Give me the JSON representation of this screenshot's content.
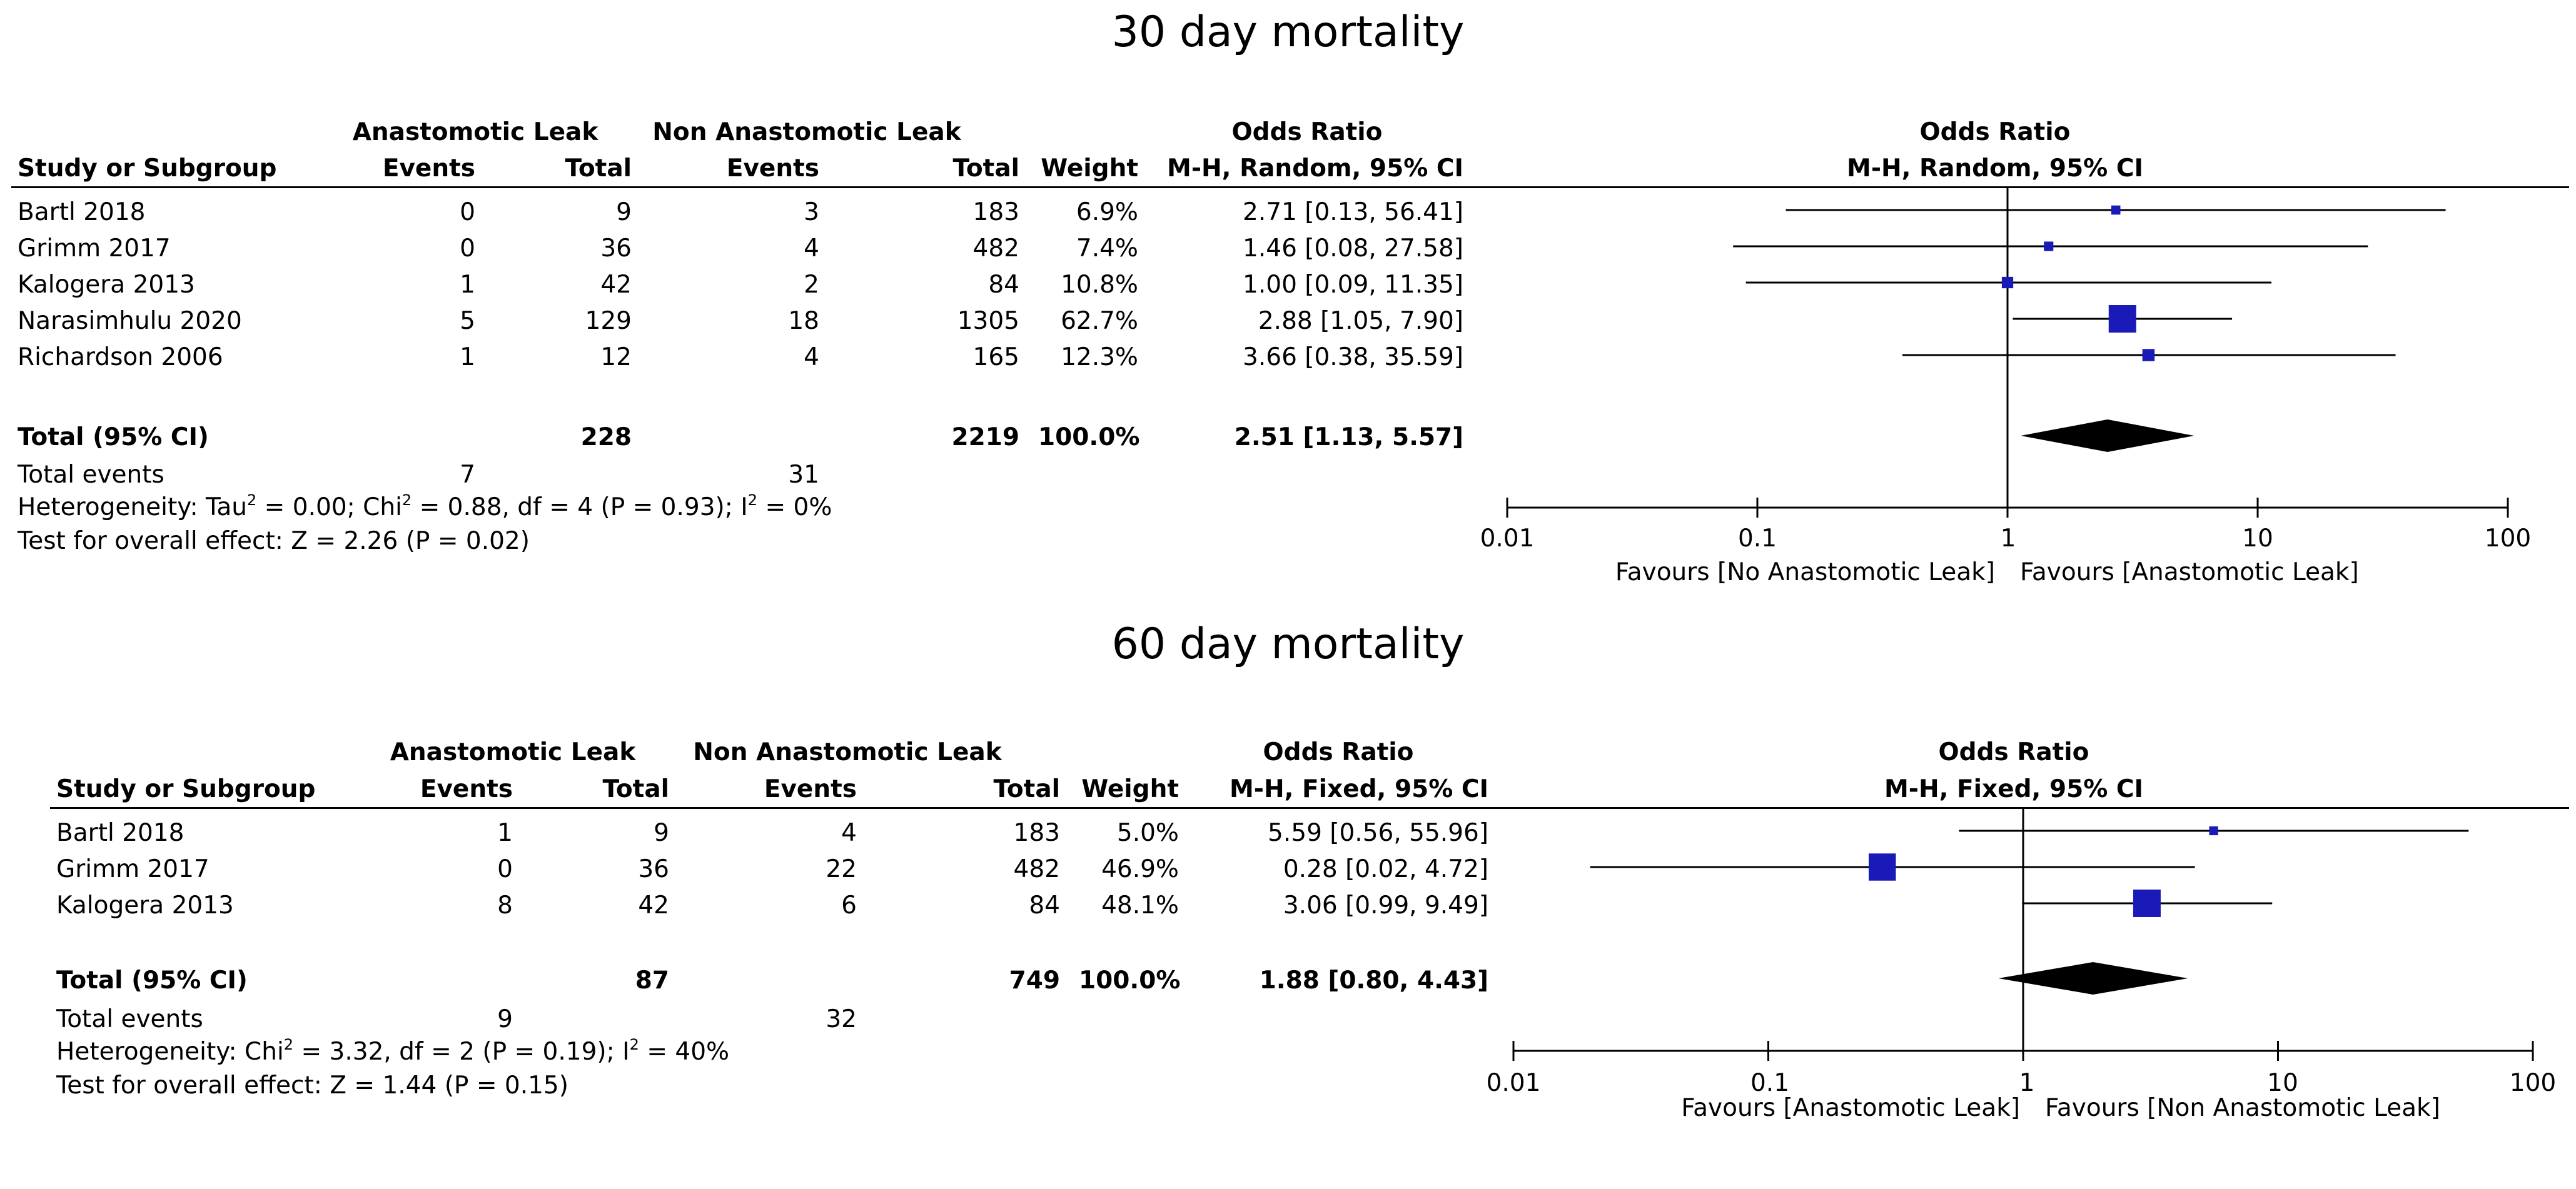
{
  "panels": [
    {
      "title": "30 day mortality",
      "headers": {
        "group1": "Anastomotic Leak",
        "group2": "Non Anastomotic Leak",
        "or_header_top": "Odds Ratio",
        "or_header_method": "M-H, Random, 95% CI",
        "study": "Study or Subgroup",
        "events1": "Events",
        "total1": "Total",
        "events2": "Events",
        "total2": "Total",
        "weight": "Weight",
        "plot_header_top": "Odds Ratio",
        "plot_header_method": "M-H, Random, 95% CI"
      },
      "rows": [
        {
          "study": "Bartl 2018",
          "e1": "0",
          "t1": "9",
          "e2": "3",
          "t2": "183",
          "weight": "6.9%",
          "ci_text": "2.71 [0.13, 56.41]"
        },
        {
          "study": "Grimm 2017",
          "e1": "0",
          "t1": "36",
          "e2": "4",
          "t2": "482",
          "weight": "7.4%",
          "ci_text": "1.46 [0.08, 27.58]"
        },
        {
          "study": "Kalogera 2013",
          "e1": "1",
          "t1": "42",
          "e2": "2",
          "t2": "84",
          "weight": "10.8%",
          "ci_text": "1.00 [0.09, 11.35]"
        },
        {
          "study": "Narasimhulu 2020",
          "e1": "5",
          "t1": "129",
          "e2": "18",
          "t2": "1305",
          "weight": "62.7%",
          "ci_text": "2.88 [1.05, 7.90]"
        },
        {
          "study": "Richardson 2006",
          "e1": "1",
          "t1": "12",
          "e2": "4",
          "t2": "165",
          "weight": "12.3%",
          "ci_text": "3.66 [0.38, 35.59]"
        }
      ],
      "total": {
        "label": "Total (95% CI)",
        "t1": "228",
        "t2": "2219",
        "weight": "100.0%",
        "ci_text": "2.51 [1.13, 5.57]"
      },
      "total_events": {
        "label": "Total events",
        "e1": "7",
        "e2": "31"
      },
      "heterogeneity": {
        "label": "Heterogeneity: Tau",
        "sup1": "2",
        "part2": " = 0.00; Chi",
        "sup2": "2",
        "part3": " = 0.88, df = 4 (P = 0.93); I",
        "sup3": "2",
        "part4": " = 0%"
      },
      "overall": "Test for overall effect: Z = 2.26 (P = 0.02)",
      "axis": {
        "ticks": [
          "0.01",
          "0.1",
          "1",
          "10",
          "100"
        ],
        "favours_left": "Favours [No Anastomotic Leak]",
        "favours_right": "Favours [Anastomotic Leak]"
      }
    },
    {
      "title": "60 day mortality",
      "headers": {
        "group1": "Anastomotic Leak",
        "group2": "Non Anastomotic Leak",
        "or_header_top": "Odds Ratio",
        "or_header_method": "M-H, Fixed, 95% CI",
        "study": "Study or Subgroup",
        "events1": "Events",
        "total1": "Total",
        "events2": "Events",
        "total2": "Total",
        "weight": "Weight",
        "plot_header_top": "Odds Ratio",
        "plot_header_method": "M-H, Fixed, 95% CI"
      },
      "rows": [
        {
          "study": "Bartl 2018",
          "e1": "1",
          "t1": "9",
          "e2": "4",
          "t2": "183",
          "weight": "5.0%",
          "ci_text": "5.59 [0.56, 55.96]"
        },
        {
          "study": "Grimm 2017",
          "e1": "0",
          "t1": "36",
          "e2": "22",
          "t2": "482",
          "weight": "46.9%",
          "ci_text": "0.28 [0.02, 4.72]"
        },
        {
          "study": "Kalogera 2013",
          "e1": "8",
          "t1": "42",
          "e2": "6",
          "t2": "84",
          "weight": "48.1%",
          "ci_text": "3.06 [0.99, 9.49]"
        }
      ],
      "total": {
        "label": "Total (95% CI)",
        "t1": "87",
        "t2": "749",
        "weight": "100.0%",
        "ci_text": "1.88 [0.80, 4.43]"
      },
      "total_events": {
        "label": "Total events",
        "e1": "9",
        "e2": "32"
      },
      "heterogeneity": {
        "label": "Heterogeneity: Chi",
        "sup1": "2",
        "part2": " = 3.32, df = 2 (P = 0.19); I",
        "sup2": "2",
        "part3": " = 40%",
        "sup3": "",
        "part4": ""
      },
      "overall": "Test for overall effect: Z = 1.44 (P = 0.15)",
      "axis": {
        "ticks": [
          "0.01",
          "0.1",
          "1",
          "10",
          "100"
        ],
        "favours_left": "Favours [Anastomotic Leak]",
        "favours_right": "Favours [Non Anastomotic Leak]"
      }
    }
  ],
  "chart_data": [
    {
      "type": "forest",
      "title": "30 day mortality",
      "scale": "log",
      "xlim": [
        0.01,
        100
      ],
      "ref_line": 1,
      "color": "#1a1ab8",
      "studies": [
        {
          "name": "Bartl 2018",
          "or": 2.71,
          "lo": 0.13,
          "hi": 56.41,
          "weight": 6.9
        },
        {
          "name": "Grimm 2017",
          "or": 1.46,
          "lo": 0.08,
          "hi": 27.58,
          "weight": 7.4
        },
        {
          "name": "Kalogera 2013",
          "or": 1.0,
          "lo": 0.09,
          "hi": 11.35,
          "weight": 10.8
        },
        {
          "name": "Narasimhulu 2020",
          "or": 2.88,
          "lo": 1.05,
          "hi": 7.9,
          "weight": 62.7
        },
        {
          "name": "Richardson 2006",
          "or": 3.66,
          "lo": 0.38,
          "hi": 35.59,
          "weight": 12.3
        }
      ],
      "pooled": {
        "or": 2.51,
        "lo": 1.13,
        "hi": 5.57
      }
    },
    {
      "type": "forest",
      "title": "60 day mortality",
      "scale": "log",
      "xlim": [
        0.01,
        100
      ],
      "ref_line": 1,
      "color": "#1a1ab8",
      "studies": [
        {
          "name": "Bartl 2018",
          "or": 5.59,
          "lo": 0.56,
          "hi": 55.96,
          "weight": 5.0
        },
        {
          "name": "Grimm 2017",
          "or": 0.28,
          "lo": 0.02,
          "hi": 4.72,
          "weight": 46.9
        },
        {
          "name": "Kalogera 2013",
          "or": 3.06,
          "lo": 0.99,
          "hi": 9.49,
          "weight": 48.1
        }
      ],
      "pooled": {
        "or": 1.88,
        "lo": 0.8,
        "hi": 4.43
      }
    }
  ]
}
